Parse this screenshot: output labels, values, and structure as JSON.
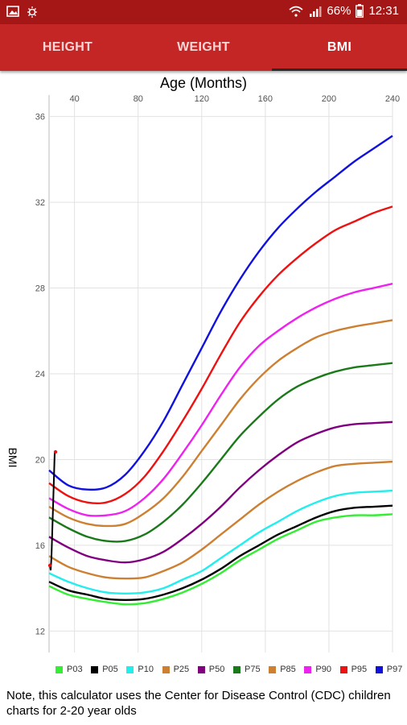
{
  "status_bar": {
    "battery": "66%",
    "time": "12:31",
    "colors": {
      "bar": "#a51717"
    }
  },
  "tabs": [
    {
      "label": "HEIGHT",
      "active": false
    },
    {
      "label": "WEIGHT",
      "active": false
    },
    {
      "label": "BMI",
      "active": true
    }
  ],
  "chart_data": {
    "type": "line",
    "xlabel": "Age (Months)",
    "ylabel": "BMI",
    "x_ticks": [
      40,
      80,
      120,
      160,
      200,
      240
    ],
    "y_ticks": [
      12,
      16,
      20,
      24,
      28,
      32,
      36
    ],
    "xlim": [
      24,
      240
    ],
    "ylim": [
      11,
      37
    ],
    "grid": true,
    "x": [
      24,
      36,
      48,
      60,
      72,
      84,
      96,
      108,
      120,
      132,
      144,
      156,
      168,
      180,
      192,
      204,
      216,
      228,
      240
    ],
    "series": [
      {
        "name": "P03",
        "color": "#33ee33",
        "values": [
          14.1,
          13.7,
          13.5,
          13.35,
          13.25,
          13.3,
          13.5,
          13.8,
          14.2,
          14.7,
          15.3,
          15.8,
          16.3,
          16.7,
          17.1,
          17.3,
          17.4,
          17.4,
          17.45
        ]
      },
      {
        "name": "P05",
        "color": "#000000",
        "values": [
          14.3,
          13.9,
          13.7,
          13.5,
          13.45,
          13.5,
          13.7,
          14.0,
          14.4,
          14.9,
          15.5,
          16.0,
          16.5,
          16.9,
          17.3,
          17.6,
          17.75,
          17.8,
          17.85
        ]
      },
      {
        "name": "P10",
        "color": "#22eeee",
        "values": [
          14.7,
          14.3,
          14.0,
          13.8,
          13.75,
          13.8,
          14.0,
          14.4,
          14.8,
          15.4,
          16.0,
          16.6,
          17.1,
          17.6,
          18.0,
          18.3,
          18.45,
          18.5,
          18.55
        ]
      },
      {
        "name": "P25",
        "color": "#cd7f32",
        "values": [
          15.5,
          15.0,
          14.7,
          14.5,
          14.45,
          14.5,
          14.8,
          15.2,
          15.8,
          16.5,
          17.2,
          17.9,
          18.5,
          19.0,
          19.4,
          19.7,
          19.8,
          19.85,
          19.9
        ]
      },
      {
        "name": "P50",
        "color": "#800080",
        "values": [
          16.4,
          15.9,
          15.5,
          15.3,
          15.2,
          15.35,
          15.7,
          16.3,
          17.0,
          17.8,
          18.7,
          19.5,
          20.2,
          20.8,
          21.2,
          21.5,
          21.65,
          21.7,
          21.75
        ]
      },
      {
        "name": "P75",
        "color": "#1a7a1a",
        "values": [
          17.3,
          16.8,
          16.4,
          16.2,
          16.2,
          16.5,
          17.1,
          17.9,
          18.9,
          20.0,
          21.1,
          22.0,
          22.8,
          23.4,
          23.8,
          24.1,
          24.3,
          24.4,
          24.5
        ]
      },
      {
        "name": "P85",
        "color": "#cd7f32",
        "values": [
          17.8,
          17.3,
          17.0,
          16.9,
          17.0,
          17.5,
          18.2,
          19.2,
          20.4,
          21.6,
          22.8,
          23.8,
          24.6,
          25.2,
          25.7,
          26.0,
          26.2,
          26.35,
          26.5
        ]
      },
      {
        "name": "P90",
        "color": "#ee22ee",
        "values": [
          18.2,
          17.7,
          17.4,
          17.4,
          17.6,
          18.2,
          19.1,
          20.3,
          21.6,
          23.0,
          24.3,
          25.3,
          26.0,
          26.6,
          27.1,
          27.5,
          27.8,
          28.0,
          28.2
        ]
      },
      {
        "name": "P95",
        "color": "#ee1111",
        "values": [
          18.9,
          18.3,
          18.0,
          18.0,
          18.4,
          19.2,
          20.4,
          21.8,
          23.3,
          24.9,
          26.4,
          27.6,
          28.6,
          29.4,
          30.1,
          30.7,
          31.1,
          31.5,
          31.8
        ]
      },
      {
        "name": "P97",
        "color": "#1111dd",
        "values": [
          19.5,
          18.8,
          18.6,
          18.7,
          19.3,
          20.4,
          21.8,
          23.5,
          25.2,
          26.9,
          28.4,
          29.7,
          30.8,
          31.7,
          32.5,
          33.2,
          33.9,
          34.5,
          35.1
        ]
      }
    ]
  },
  "note": "Note, this calculator uses the Center for Disease Control (CDC) children charts for 2-20 year olds"
}
